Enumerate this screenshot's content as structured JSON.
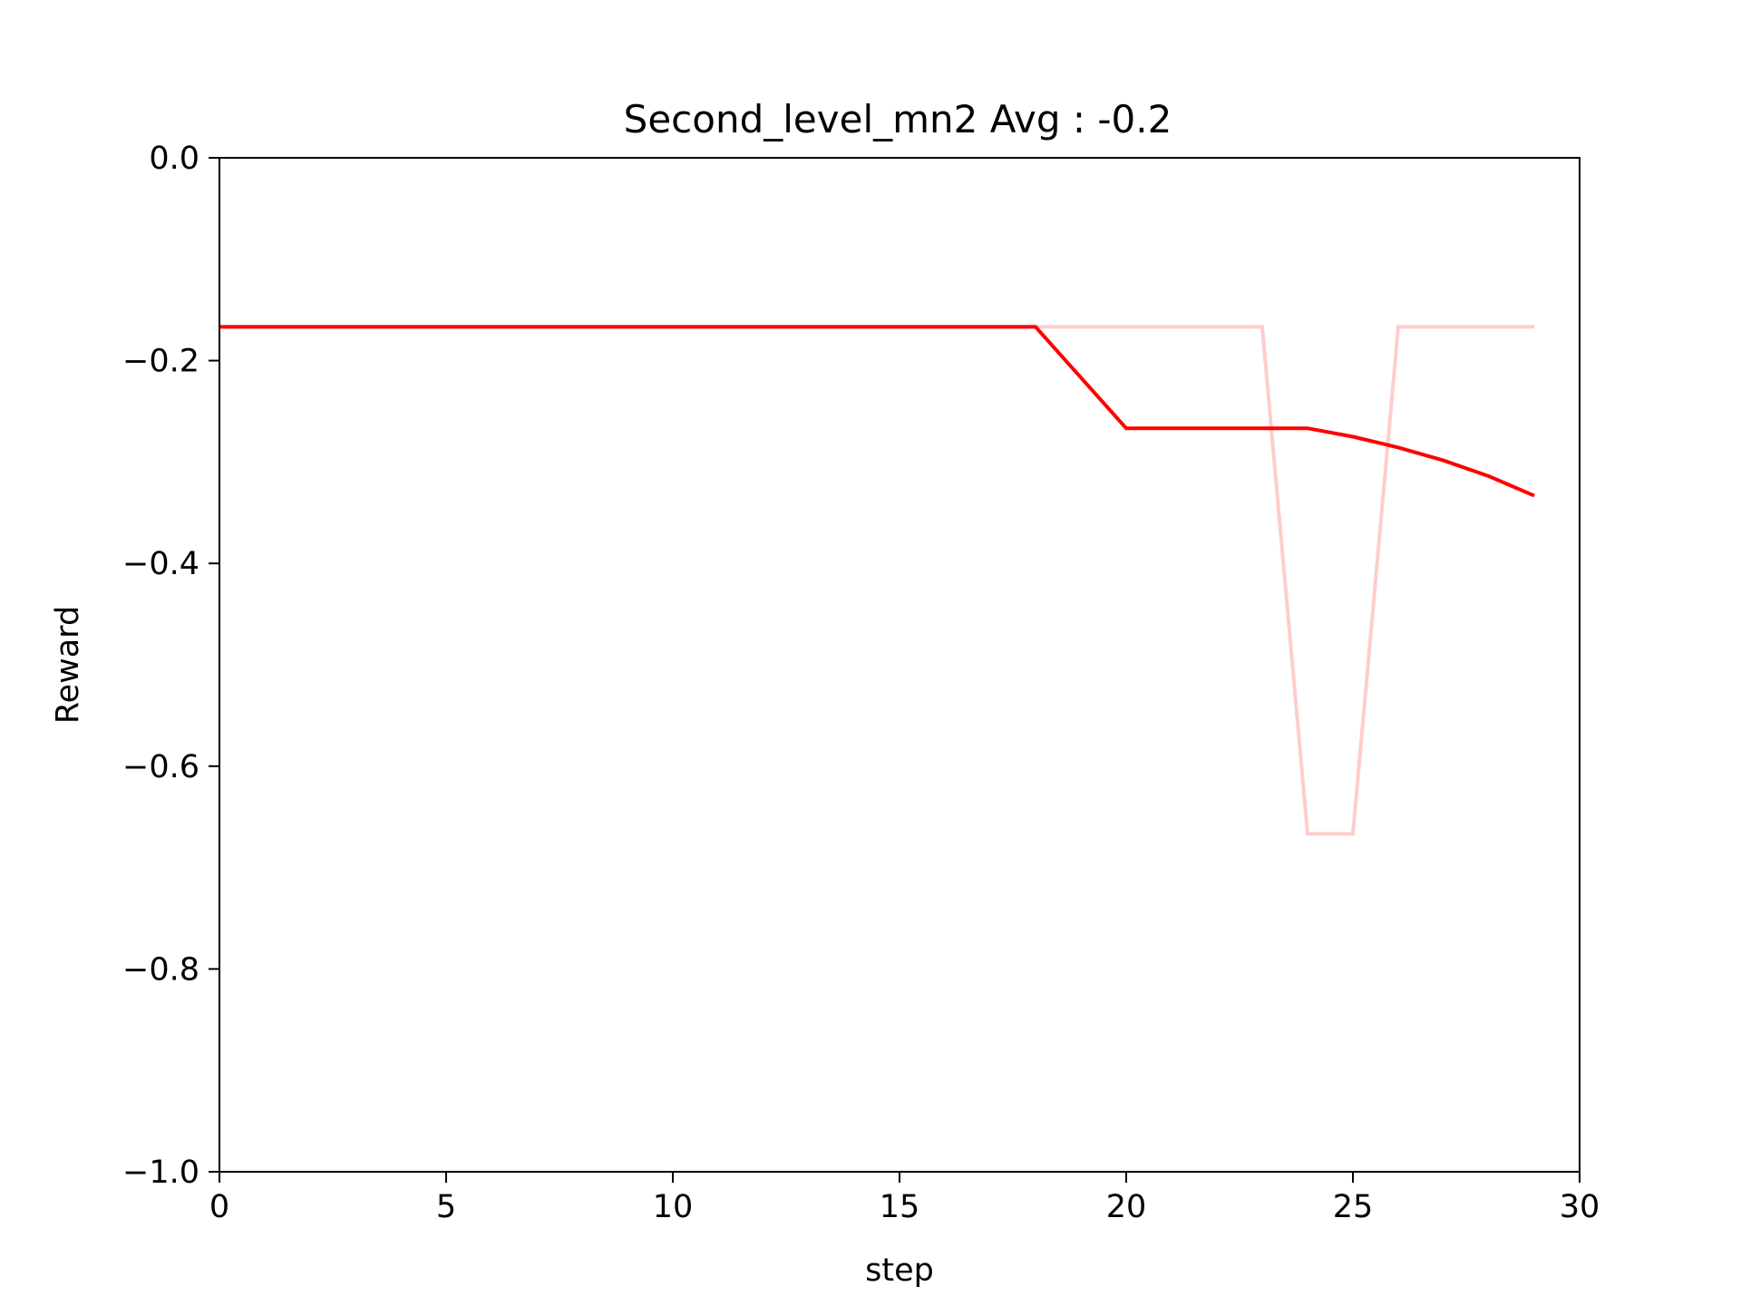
{
  "chart_data": {
    "type": "line",
    "title": "Second_level_mn2 Avg : -0.2",
    "xlabel": "step",
    "ylabel": "Reward",
    "xlim": [
      0,
      30
    ],
    "ylim": [
      -1.0,
      0.0
    ],
    "xticks": [
      0,
      5,
      10,
      15,
      20,
      25,
      30
    ],
    "xtick_labels": [
      "0",
      "5",
      "10",
      "15",
      "20",
      "25",
      "30"
    ],
    "yticks": [
      0.0,
      -0.2,
      -0.4,
      -0.6,
      -0.8,
      -1.0
    ],
    "ytick_labels": [
      "0.0",
      "−0.2",
      "−0.4",
      "−0.6",
      "−0.8",
      "−1.0"
    ],
    "grid": false,
    "x": [
      0,
      1,
      2,
      3,
      4,
      5,
      6,
      7,
      8,
      9,
      10,
      11,
      12,
      13,
      14,
      15,
      16,
      17,
      18,
      19,
      20,
      21,
      22,
      23,
      24,
      25,
      26,
      27,
      28,
      29
    ],
    "series": [
      {
        "color": "#ffcccc",
        "values": [
          -0.1667,
          -0.1667,
          -0.1667,
          -0.1667,
          -0.1667,
          -0.1667,
          -0.1667,
          -0.1667,
          -0.1667,
          -0.1667,
          -0.1667,
          -0.1667,
          -0.1667,
          -0.1667,
          -0.1667,
          -0.1667,
          -0.1667,
          -0.1667,
          -0.1667,
          -0.1667,
          -0.1667,
          -0.1667,
          -0.1667,
          -0.1667,
          -0.6667,
          -0.6667,
          -0.1667,
          -0.1667,
          -0.1667,
          -0.1667
        ]
      },
      {
        "color": "#ff0000",
        "values": [
          -0.1667,
          -0.1667,
          -0.1667,
          -0.1667,
          -0.1667,
          -0.1667,
          -0.1667,
          -0.1667,
          -0.1667,
          -0.1667,
          -0.1667,
          -0.1667,
          -0.1667,
          -0.1667,
          -0.1667,
          -0.1667,
          -0.1667,
          -0.1667,
          -0.1667,
          -0.2167,
          -0.2667,
          -0.2667,
          -0.2667,
          -0.2667,
          -0.2667,
          -0.275,
          -0.2857,
          -0.2985,
          -0.314,
          -0.3333
        ]
      }
    ]
  }
}
